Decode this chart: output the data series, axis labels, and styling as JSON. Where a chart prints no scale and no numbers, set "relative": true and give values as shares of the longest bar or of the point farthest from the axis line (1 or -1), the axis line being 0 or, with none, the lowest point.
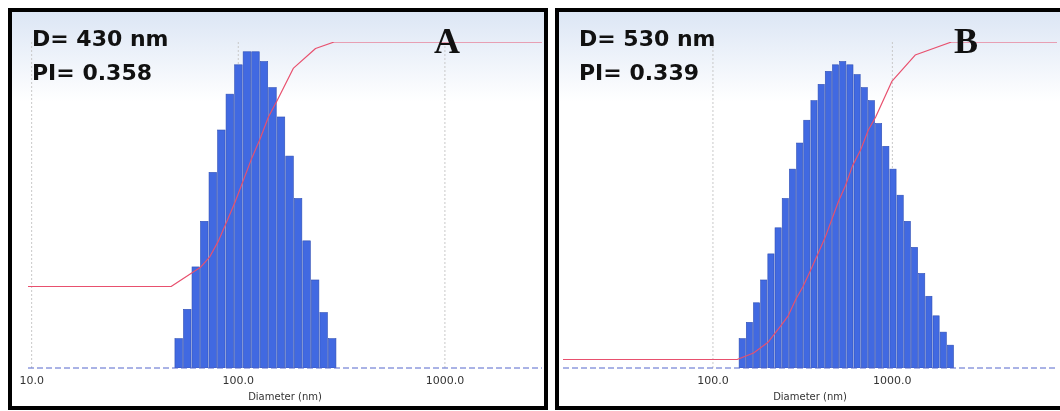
{
  "chart_data": [
    {
      "type": "histogram",
      "xlabel": "Diameter (nm)",
      "log": "x",
      "grid": "x",
      "relative": true,
      "xlim": [
        9.6,
        2950
      ],
      "xticks": [
        {
          "value": 10,
          "label": "10.0"
        },
        {
          "value": 100,
          "label": "100.0"
        },
        {
          "value": 1000,
          "label": "1000.0"
        }
      ],
      "annotations": [
        "D= 430 nm",
        "PI= 0.358",
        "A"
      ],
      "series": [
        {
          "type": "histogram",
          "color": "#4169e1",
          "bins": [
            49.1,
            54.0,
            59.4,
            65.3,
            71.8,
            79.0,
            86.8,
            95.5,
            105.0,
            115.5,
            127.0,
            139.6,
            153.5,
            168.8,
            185.7,
            204.2,
            224.5,
            246.9,
            271.5,
            298.6
          ],
          "values": [
            0.09,
            0.18,
            0.31,
            0.45,
            0.6,
            0.73,
            0.84,
            0.93,
            0.97,
            0.97,
            0.94,
            0.86,
            0.77,
            0.65,
            0.52,
            0.39,
            0.27,
            0.17,
            0.09
          ]
        },
        {
          "type": "line",
          "color": "#e8506e",
          "x": [
            9.6,
            47.3,
            65.9,
            72.6,
            80.2,
            88.1,
            96.6,
            115.6,
            127.0,
            139.9,
            154.0,
            185,
            236.5,
            291,
            2950
          ],
          "values": [
            0.25,
            0.25,
            0.31,
            0.34,
            0.39,
            0.45,
            0.51,
            0.64,
            0.7,
            0.77,
            0.82,
            0.92,
            0.98,
            1,
            1
          ]
        }
      ]
    },
    {
      "type": "histogram",
      "xlabel": "Diameter (nm)",
      "log": "x",
      "grid": "x",
      "relative": true,
      "xlim": [
        14.6,
        8270
      ],
      "xticks": [
        {
          "value": 100,
          "label": "100.0"
        },
        {
          "value": 1000,
          "label": "1000.0"
        }
      ],
      "annotations": [
        "D= 530 nm",
        "PI= 0.339",
        "B"
      ],
      "series": [
        {
          "type": "histogram",
          "color": "#4169e1",
          "bins": [
            139.1,
            152.5,
            167.2,
            183.4,
            201.1,
            220.5,
            241.8,
            265.1,
            290.7,
            318.7,
            349.5,
            383.2,
            420.2,
            460.8,
            505.2,
            554.0,
            607.4,
            666.1,
            730.3,
            800.8,
            878.1,
            962.9,
            1055.8,
            1157.7,
            1269.4,
            1391.9,
            1526.2,
            1673.5,
            1835.0,
            2012.1,
            2206.3
          ],
          "values": [
            0.09,
            0.14,
            0.2,
            0.27,
            0.35,
            0.43,
            0.52,
            0.61,
            0.69,
            0.76,
            0.82,
            0.87,
            0.91,
            0.93,
            0.94,
            0.93,
            0.9,
            0.86,
            0.82,
            0.75,
            0.68,
            0.61,
            0.53,
            0.45,
            0.37,
            0.29,
            0.22,
            0.16,
            0.11,
            0.07
          ]
        },
        {
          "type": "line",
          "color": "#e8506e",
          "x": [
            14.6,
            136.3,
            168.4,
            203.6,
            239.3,
            262.6,
            289.4,
            317.7,
            350.2,
            384.3,
            421.7,
            500,
            548,
            599.5,
            667,
            734.6,
            807,
            995.7,
            1340,
            2134,
            8270
          ],
          "values": [
            0.026,
            0.026,
            0.046,
            0.08,
            0.13,
            0.16,
            0.21,
            0.25,
            0.3,
            0.35,
            0.4,
            0.51,
            0.56,
            0.62,
            0.67,
            0.73,
            0.77,
            0.88,
            0.96,
            1,
            1
          ]
        }
      ]
    }
  ]
}
